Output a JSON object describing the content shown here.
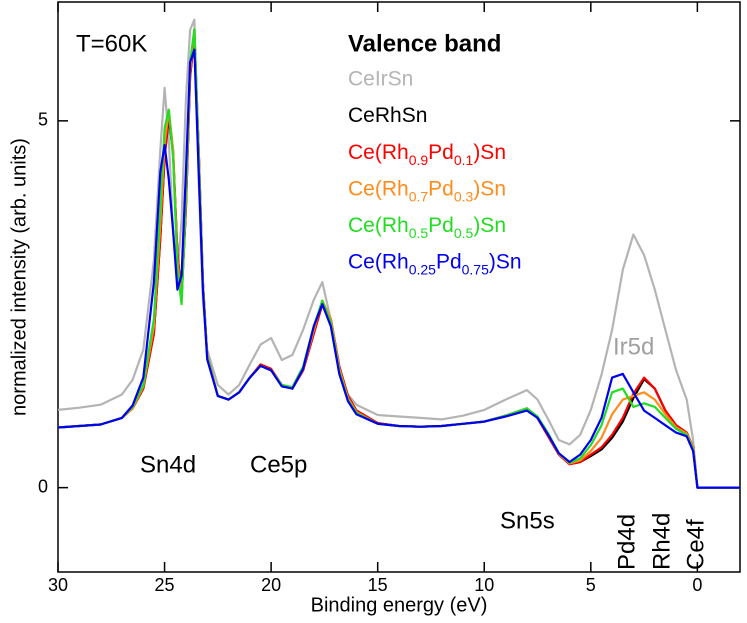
{
  "chart_data": {
    "type": "line",
    "xlabel": "Binding energy (eV)",
    "ylabel": "normalized intensity (arb. units)",
    "legend_title": "Valence band",
    "annotations": [
      "T=60K",
      "Sn4d",
      "Ce5p",
      "Sn5s",
      "Ir5d",
      "Pd4d",
      "Rh4d",
      "Ce4f"
    ],
    "xlim": [
      30,
      -2
    ],
    "xticks": [
      30,
      25,
      20,
      15,
      10,
      5,
      0
    ],
    "ylim": [
      -1.15,
      6.62
    ],
    "yticks": [
      0,
      5
    ],
    "x": [
      30,
      29,
      28,
      27,
      26.5,
      26,
      25.5,
      25.2,
      25.0,
      24.8,
      24.6,
      24.4,
      24.2,
      24.0,
      23.8,
      23.6,
      23.4,
      23.2,
      23.0,
      22.5,
      22,
      21.5,
      21,
      20.5,
      20,
      19.5,
      19,
      18.5,
      18,
      17.6,
      17.2,
      16.8,
      16.4,
      16,
      15,
      14,
      13,
      12,
      11,
      10,
      9,
      8,
      7.5,
      7,
      6.5,
      6,
      5.5,
      5,
      4.5,
      4,
      3.5,
      3,
      2.5,
      2,
      1.5,
      1,
      0.5,
      0.2,
      0,
      -0.5,
      -1,
      -2
    ],
    "series": [
      {
        "name": "CeIrSn",
        "color": "#b4b4b4",
        "values": [
          1.06,
          1.09,
          1.13,
          1.27,
          1.47,
          1.88,
          3.1,
          4.6,
          5.45,
          4.74,
          3.5,
          2.9,
          3.65,
          5.29,
          6.24,
          6.38,
          4.2,
          2.56,
          1.88,
          1.4,
          1.27,
          1.4,
          1.68,
          1.95,
          2.04,
          1.74,
          1.81,
          2.15,
          2.56,
          2.8,
          2.29,
          1.6,
          1.27,
          1.13,
          0.99,
          0.97,
          0.95,
          0.93,
          0.98,
          1.06,
          1.2,
          1.33,
          1.2,
          0.93,
          0.65,
          0.59,
          0.72,
          1.06,
          1.54,
          2.15,
          2.97,
          3.45,
          3.17,
          2.7,
          2.15,
          1.6,
          1.2,
          0.65,
          0,
          0,
          0,
          0
        ]
      },
      {
        "name": "CeRhSn",
        "color": "#000000",
        "values": [
          0.82,
          0.84,
          0.86,
          0.95,
          1.08,
          1.35,
          2.1,
          3.4,
          4.5,
          5.05,
          4.55,
          3.2,
          2.6,
          3.8,
          5.6,
          6.15,
          4.6,
          2.8,
          1.8,
          1.25,
          1.2,
          1.3,
          1.5,
          1.66,
          1.6,
          1.4,
          1.35,
          1.6,
          2.1,
          2.5,
          2.3,
          1.65,
          1.25,
          1.05,
          0.88,
          0.84,
          0.83,
          0.84,
          0.87,
          0.9,
          0.98,
          1.08,
          0.95,
          0.7,
          0.45,
          0.32,
          0.35,
          0.43,
          0.52,
          0.68,
          0.9,
          1.22,
          1.48,
          1.35,
          1.05,
          0.85,
          0.75,
          0.55,
          0,
          0,
          0,
          0
        ]
      },
      {
        "name": "Ce(Rh0.9Pd0.1)Sn",
        "color": "#ff0000",
        "values": [
          0.82,
          0.84,
          0.86,
          0.95,
          1.08,
          1.35,
          2.1,
          3.4,
          4.5,
          5.1,
          4.6,
          3.2,
          2.6,
          3.8,
          5.6,
          6.2,
          4.6,
          2.8,
          1.8,
          1.25,
          1.2,
          1.3,
          1.5,
          1.68,
          1.62,
          1.4,
          1.35,
          1.6,
          2.1,
          2.5,
          2.3,
          1.65,
          1.25,
          1.05,
          0.88,
          0.84,
          0.83,
          0.84,
          0.87,
          0.9,
          0.98,
          1.08,
          0.95,
          0.7,
          0.45,
          0.32,
          0.35,
          0.45,
          0.55,
          0.72,
          0.95,
          1.28,
          1.5,
          1.35,
          1.05,
          0.85,
          0.75,
          0.55,
          0,
          0,
          0,
          0
        ]
      },
      {
        "name": "Ce(Rh0.7Pd0.3)Sn",
        "color": "#ff8c1a",
        "values": [
          0.82,
          0.84,
          0.86,
          0.95,
          1.08,
          1.38,
          2.2,
          3.6,
          4.7,
          5.15,
          4.6,
          3.1,
          2.55,
          3.9,
          5.7,
          6.25,
          4.6,
          2.8,
          1.8,
          1.25,
          1.2,
          1.3,
          1.5,
          1.66,
          1.6,
          1.4,
          1.35,
          1.62,
          2.15,
          2.55,
          2.3,
          1.62,
          1.22,
          1.03,
          0.87,
          0.84,
          0.83,
          0.84,
          0.87,
          0.9,
          0.98,
          1.08,
          0.96,
          0.72,
          0.46,
          0.33,
          0.37,
          0.5,
          0.68,
          1.0,
          1.2,
          1.25,
          1.3,
          1.2,
          1.0,
          0.82,
          0.74,
          0.55,
          0,
          0,
          0,
          0
        ]
      },
      {
        "name": "Ce(Rh0.5Pd0.5)Sn",
        "color": "#22dd22",
        "values": [
          0.82,
          0.84,
          0.86,
          0.95,
          1.1,
          1.4,
          2.3,
          3.8,
          4.9,
          5.15,
          4.5,
          3.0,
          2.5,
          4.0,
          5.8,
          6.25,
          4.5,
          2.75,
          1.78,
          1.25,
          1.2,
          1.3,
          1.5,
          1.66,
          1.6,
          1.4,
          1.37,
          1.65,
          2.2,
          2.55,
          2.25,
          1.58,
          1.2,
          1.02,
          0.87,
          0.84,
          0.83,
          0.84,
          0.87,
          0.9,
          0.98,
          1.08,
          0.97,
          0.74,
          0.47,
          0.34,
          0.4,
          0.58,
          0.85,
          1.3,
          1.35,
          1.1,
          1.15,
          1.1,
          0.95,
          0.8,
          0.72,
          0.52,
          0,
          0,
          0,
          0
        ]
      },
      {
        "name": "Ce(Rh0.25Pd0.75)Sn",
        "color": "#0000ee",
        "values": [
          0.82,
          0.84,
          0.86,
          0.95,
          1.12,
          1.5,
          2.8,
          4.3,
          4.67,
          4.2,
          3.5,
          2.7,
          2.9,
          4.3,
          5.8,
          5.97,
          4.3,
          2.7,
          1.75,
          1.25,
          1.2,
          1.3,
          1.5,
          1.66,
          1.6,
          1.38,
          1.35,
          1.62,
          2.2,
          2.5,
          2.2,
          1.55,
          1.18,
          1.0,
          0.87,
          0.84,
          0.83,
          0.84,
          0.87,
          0.9,
          0.97,
          1.05,
          0.95,
          0.72,
          0.47,
          0.35,
          0.45,
          0.65,
          0.95,
          1.5,
          1.55,
          1.3,
          1.05,
          0.95,
          0.85,
          0.75,
          0.7,
          0.5,
          0,
          0,
          0,
          0
        ]
      }
    ]
  }
}
